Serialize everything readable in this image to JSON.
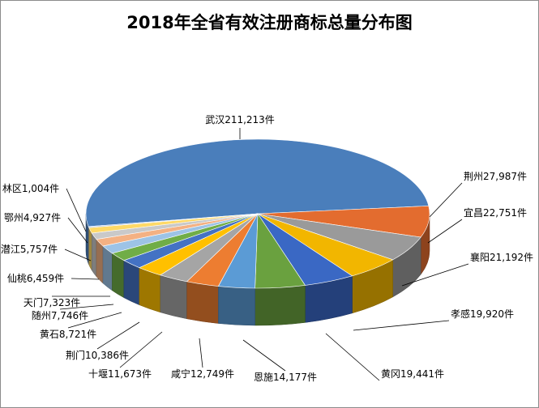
{
  "chart_data": {
    "type": "pie",
    "title": "2018年全省有效注册商标总量分布图",
    "categories": [
      "武汉",
      "荆州",
      "宜昌",
      "襄阳",
      "孝感",
      "黄冈",
      "恩施",
      "咸宁",
      "十堰",
      "荆门",
      "黄石",
      "随州",
      "天门",
      "仙桃",
      "潜江",
      "鄂州",
      "林区"
    ],
    "values": [
      211213,
      27987,
      22751,
      21192,
      19920,
      19441,
      14177,
      12749,
      11673,
      10386,
      8721,
      7746,
      7323,
      6459,
      5757,
      4927,
      1004
    ],
    "labels": [
      "武汉211,213件",
      "荆州27,987件",
      "宜昌22,751件",
      "襄阳21,192件",
      "孝感19,920件",
      "黄冈19,441件",
      "恩施14,177件",
      "咸宁12,749件",
      "十堰11,673件",
      "荆门10,386件",
      "黄石8,721件",
      "随州7,746件",
      "天门7,323件",
      "仙桃6,459件",
      "潜江5,757件",
      "鄂州4,927件",
      "林区1,004件"
    ],
    "colors": [
      "#4a7ebb",
      "#e36c2f",
      "#9a9a9a",
      "#f2b600",
      "#3a68c4",
      "#6aa13f",
      "#5b9bd5",
      "#ed7d31",
      "#a5a5a5",
      "#ffc000",
      "#4472c4",
      "#70ad47",
      "#9dc3e6",
      "#f4b183",
      "#c9c9c9",
      "#ffd966",
      "#b4c7e7"
    ],
    "style": "3d-pie",
    "legend": "none"
  }
}
